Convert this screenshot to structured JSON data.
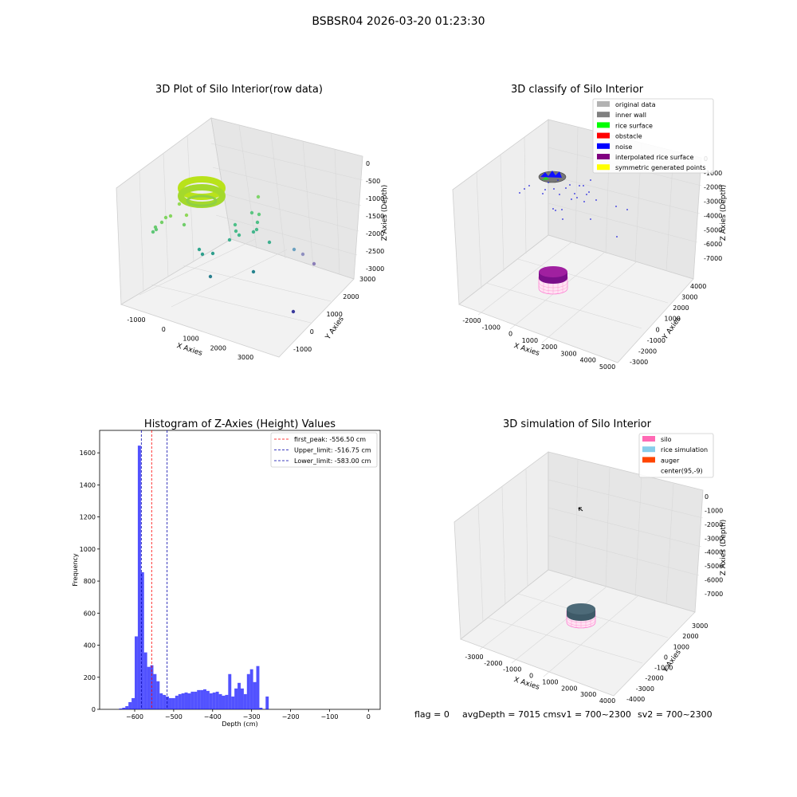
{
  "suptitle": "BSBSR04 2026-03-20 01:23:30",
  "footer": {
    "flag": "flag = 0",
    "avg_depth": "avgDepth = 7015 cmsv1 = 700~2300",
    "sv2": "sv2 = 700~2300"
  },
  "panel1": {
    "title": "3D Plot of Silo Interior(row data)",
    "xlabel": "X Axies",
    "ylabel": "Y Axies",
    "zlabel": "Z Axies (Depth)",
    "xticks": [
      "-1000",
      "0",
      "1000",
      "2000",
      "3000"
    ],
    "yticks": [
      "-1000",
      "0",
      "1000",
      "2000",
      "3000"
    ],
    "zticks": [
      "0",
      "-500",
      "-1000",
      "-1500",
      "-2000",
      "-2500",
      "-3000"
    ]
  },
  "panel2": {
    "title": "3D classify of Silo Interior",
    "xlabel": "X Axies",
    "ylabel": "Y Axies",
    "zlabel": "Z Axies (Depth)",
    "xticks": [
      "-2000",
      "-1000",
      "0",
      "1000",
      "2000",
      "3000",
      "4000",
      "5000"
    ],
    "yticks": [
      "-3000",
      "-2000",
      "-1000",
      "0",
      "1000",
      "2000",
      "3000",
      "4000"
    ],
    "zticks": [
      "0",
      "-1000",
      "-2000",
      "-3000",
      "-4000",
      "-5000",
      "-6000",
      "-7000"
    ],
    "legend": [
      {
        "label": "original data",
        "color": "#b3b3b3"
      },
      {
        "label": "inner wall",
        "color": "#808080"
      },
      {
        "label": "rice surface",
        "color": "#00ff00"
      },
      {
        "label": "obstacle",
        "color": "#ff0000"
      },
      {
        "label": "noise",
        "color": "#0000ff"
      },
      {
        "label": "interpolated rice surface",
        "color": "#800080"
      },
      {
        "label": "symmetric generated points",
        "color": "#ffff00"
      }
    ]
  },
  "panel3": {
    "title": "Histogram of Z-Axies (Height) Values",
    "xlabel": "Depth (cm)",
    "ylabel": "Frequency",
    "legend": [
      {
        "label": "first_peak: -556.50 cm",
        "color": "#ff0000"
      },
      {
        "label": "Upper_limit: -516.75 cm",
        "color": "#0000aa"
      },
      {
        "label": "Lower_limit: -583.00 cm",
        "color": "#0000aa"
      }
    ]
  },
  "panel4": {
    "title": "3D simulation of Silo Interior",
    "xlabel": "X Axies",
    "ylabel": "Y Axies",
    "zlabel": "Z Axies (Depth)",
    "xticks": [
      "-3000",
      "-2000",
      "-1000",
      "0",
      "1000",
      "2000",
      "3000",
      "4000"
    ],
    "yticks": [
      "-4000",
      "-3000",
      "-2000",
      "-1000",
      "0",
      "1000",
      "2000",
      "3000"
    ],
    "zticks": [
      "0",
      "-1000",
      "-2000",
      "-3000",
      "-4000",
      "-5000",
      "-6000",
      "-7000"
    ],
    "legend": [
      {
        "label": "silo",
        "color": "#ff69b4"
      },
      {
        "label": "rice simulation",
        "color": "#87ceeb"
      },
      {
        "label": "auger",
        "color": "#ff4500"
      },
      {
        "label": "center(95,-9)",
        "color": "#ffffff"
      }
    ]
  },
  "chart_data": [
    {
      "type": "histogram",
      "title": "Histogram of Z-Axies (Height) Values",
      "xlabel": "Depth (cm)",
      "ylabel": "Frequency",
      "xlim": [
        -690,
        30
      ],
      "ylim": [
        0,
        1740
      ],
      "xticks": [
        -600,
        -500,
        -400,
        -300,
        -200,
        -100,
        0
      ],
      "yticks": [
        0,
        200,
        400,
        600,
        800,
        1000,
        1200,
        1400,
        1600
      ],
      "bin_width": 8,
      "bins": [
        {
          "x": -640,
          "value": 5
        },
        {
          "x": -632,
          "value": 10
        },
        {
          "x": -624,
          "value": 20
        },
        {
          "x": -616,
          "value": 45
        },
        {
          "x": -608,
          "value": 70
        },
        {
          "x": -600,
          "value": 455
        },
        {
          "x": -592,
          "value": 1645
        },
        {
          "x": -584,
          "value": 855
        },
        {
          "x": -576,
          "value": 355
        },
        {
          "x": -568,
          "value": 265
        },
        {
          "x": -560,
          "value": 275
        },
        {
          "x": -552,
          "value": 220
        },
        {
          "x": -544,
          "value": 175
        },
        {
          "x": -536,
          "value": 100
        },
        {
          "x": -528,
          "value": 90
        },
        {
          "x": -520,
          "value": 80
        },
        {
          "x": -512,
          "value": 70
        },
        {
          "x": -504,
          "value": 70
        },
        {
          "x": -496,
          "value": 85
        },
        {
          "x": -488,
          "value": 95
        },
        {
          "x": -480,
          "value": 100
        },
        {
          "x": -472,
          "value": 105
        },
        {
          "x": -464,
          "value": 100
        },
        {
          "x": -456,
          "value": 110
        },
        {
          "x": -448,
          "value": 110
        },
        {
          "x": -440,
          "value": 120
        },
        {
          "x": -432,
          "value": 120
        },
        {
          "x": -424,
          "value": 125
        },
        {
          "x": -416,
          "value": 115
        },
        {
          "x": -408,
          "value": 100
        },
        {
          "x": -400,
          "value": 105
        },
        {
          "x": -392,
          "value": 110
        },
        {
          "x": -384,
          "value": 95
        },
        {
          "x": -376,
          "value": 85
        },
        {
          "x": -368,
          "value": 90
        },
        {
          "x": -360,
          "value": 220
        },
        {
          "x": -352,
          "value": 80
        },
        {
          "x": -344,
          "value": 130
        },
        {
          "x": -336,
          "value": 165
        },
        {
          "x": -328,
          "value": 130
        },
        {
          "x": -320,
          "value": 95
        },
        {
          "x": -312,
          "value": 220
        },
        {
          "x": -304,
          "value": 250
        },
        {
          "x": -296,
          "value": 170
        },
        {
          "x": -288,
          "value": 270
        },
        {
          "x": -280,
          "value": 10
        },
        {
          "x": -272,
          "value": 0
        },
        {
          "x": -264,
          "value": 80
        }
      ],
      "vlines": [
        {
          "label": "first_peak: -556.50 cm",
          "x": -556.5,
          "color": "#ff0000"
        },
        {
          "label": "Upper_limit: -516.75 cm",
          "x": -516.75,
          "color": "#0000aa"
        },
        {
          "label": "Lower_limit: -583.00 cm",
          "x": -583.0,
          "color": "#0000aa"
        }
      ],
      "legend_position": "top-right"
    }
  ]
}
